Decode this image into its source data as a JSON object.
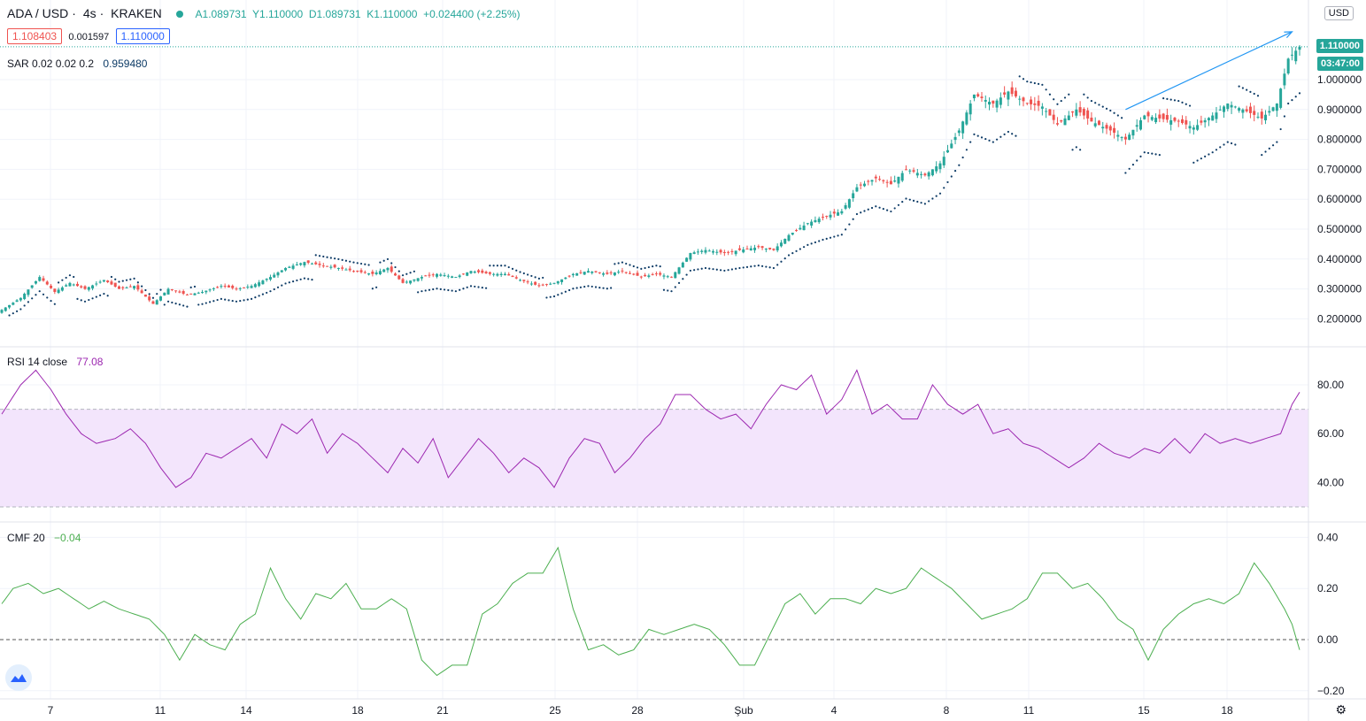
{
  "header": {
    "symbol": "ADA / USD",
    "interval": "4s",
    "exchange": "KRAKEN",
    "ohlc": "A1.089731  Y1.110000  D1.089731  K1.110000  +0.024400 (+2.25%)",
    "bid": "1.108403",
    "spread": "0.001597",
    "ask": "1.110000",
    "currency": "USD"
  },
  "indicators": {
    "sar_label": "SAR 0.02 0.02 0.2",
    "sar_value": "0.959480",
    "rsi_label": "RSI 14 close",
    "rsi_value": "77.08",
    "cmf_label": "CMF 20",
    "cmf_value": "−0.04"
  },
  "price_axis": {
    "last_price": "1.110000",
    "countdown": "03:47:00",
    "ticks": [
      "1.000000",
      "0.900000",
      "0.800000",
      "0.700000",
      "0.600000",
      "0.500000",
      "0.400000",
      "0.300000",
      "0.200000"
    ]
  },
  "rsi_axis": {
    "ticks": [
      "80.00",
      "60.00",
      "40.00"
    ]
  },
  "cmf_axis": {
    "ticks": [
      "0.40",
      "0.20",
      "0.00",
      "−0.20"
    ]
  },
  "time_axis": {
    "labels": [
      "7",
      "11",
      "14",
      "18",
      "21",
      "25",
      "28",
      "Şub",
      "4",
      "8",
      "11",
      "15",
      "18"
    ]
  },
  "colors": {
    "up": "#26a69a",
    "down": "#ef5350",
    "sar": "#0d3b66",
    "rsi": "#9c27b0",
    "rsi_band": "#f3e5fc",
    "cmf": "#4caf50",
    "arrow": "#2196f3"
  },
  "chart_data": [
    {
      "type": "candlestick",
      "title": "ADA / USD · 4s · KRAKEN",
      "ylim": [
        0.15,
        1.16
      ],
      "close_anchors": [
        [
          0,
          0.23
        ],
        [
          5,
          0.27
        ],
        [
          10,
          0.34
        ],
        [
          14,
          0.29
        ],
        [
          18,
          0.32
        ],
        [
          22,
          0.3
        ],
        [
          27,
          0.33
        ],
        [
          31,
          0.3
        ],
        [
          35,
          0.31
        ],
        [
          40,
          0.25
        ],
        [
          44,
          0.3
        ],
        [
          49,
          0.28
        ],
        [
          53,
          0.29
        ],
        [
          58,
          0.31
        ],
        [
          62,
          0.3
        ],
        [
          66,
          0.31
        ],
        [
          71,
          0.34
        ],
        [
          75,
          0.37
        ],
        [
          80,
          0.39
        ],
        [
          84,
          0.38
        ],
        [
          89,
          0.37
        ],
        [
          93,
          0.36
        ],
        [
          98,
          0.35
        ],
        [
          102,
          0.37
        ],
        [
          106,
          0.32
        ],
        [
          111,
          0.34
        ],
        [
          115,
          0.35
        ],
        [
          120,
          0.34
        ],
        [
          124,
          0.36
        ],
        [
          129,
          0.35
        ],
        [
          133,
          0.35
        ],
        [
          137,
          0.33
        ],
        [
          142,
          0.31
        ],
        [
          146,
          0.32
        ],
        [
          151,
          0.35
        ],
        [
          155,
          0.36
        ],
        [
          160,
          0.35
        ],
        [
          164,
          0.36
        ],
        [
          169,
          0.34
        ],
        [
          173,
          0.35
        ],
        [
          177,
          0.34
        ],
        [
          182,
          0.42
        ],
        [
          186,
          0.43
        ],
        [
          191,
          0.42
        ],
        [
          195,
          0.43
        ],
        [
          200,
          0.44
        ],
        [
          204,
          0.43
        ],
        [
          208,
          0.48
        ],
        [
          213,
          0.52
        ],
        [
          217,
          0.54
        ],
        [
          222,
          0.56
        ],
        [
          226,
          0.64
        ],
        [
          231,
          0.67
        ],
        [
          235,
          0.65
        ],
        [
          239,
          0.7
        ],
        [
          244,
          0.68
        ],
        [
          248,
          0.72
        ],
        [
          253,
          0.83
        ],
        [
          257,
          0.95
        ],
        [
          262,
          0.92
        ],
        [
          266,
          0.96
        ],
        [
          271,
          0.92
        ],
        [
          275,
          0.91
        ],
        [
          279,
          0.85
        ],
        [
          284,
          0.9
        ],
        [
          288,
          0.86
        ],
        [
          293,
          0.83
        ],
        [
          297,
          0.8
        ],
        [
          302,
          0.88
        ],
        [
          306,
          0.87
        ],
        [
          311,
          0.86
        ],
        [
          315,
          0.84
        ],
        [
          320,
          0.88
        ],
        [
          324,
          0.92
        ],
        [
          328,
          0.9
        ],
        [
          333,
          0.87
        ],
        [
          337,
          0.92
        ],
        [
          340,
          1.07
        ],
        [
          343,
          1.11
        ]
      ]
    },
    {
      "type": "line",
      "title": "RSI 14 close",
      "ylim": [
        28,
        94
      ],
      "bands": [
        70,
        30
      ],
      "points": [
        [
          0,
          68
        ],
        [
          5,
          80
        ],
        [
          9,
          86
        ],
        [
          13,
          78
        ],
        [
          17,
          68
        ],
        [
          21,
          60
        ],
        [
          25,
          56
        ],
        [
          30,
          58
        ],
        [
          34,
          62
        ],
        [
          38,
          56
        ],
        [
          42,
          46
        ],
        [
          46,
          38
        ],
        [
          50,
          42
        ],
        [
          54,
          52
        ],
        [
          58,
          50
        ],
        [
          62,
          54
        ],
        [
          66,
          58
        ],
        [
          70,
          50
        ],
        [
          74,
          64
        ],
        [
          78,
          60
        ],
        [
          82,
          66
        ],
        [
          86,
          52
        ],
        [
          90,
          60
        ],
        [
          94,
          56
        ],
        [
          98,
          50
        ],
        [
          102,
          44
        ],
        [
          106,
          54
        ],
        [
          110,
          48
        ],
        [
          114,
          58
        ],
        [
          118,
          42
        ],
        [
          122,
          50
        ],
        [
          126,
          58
        ],
        [
          130,
          52
        ],
        [
          134,
          44
        ],
        [
          138,
          50
        ],
        [
          142,
          46
        ],
        [
          146,
          38
        ],
        [
          150,
          50
        ],
        [
          154,
          58
        ],
        [
          158,
          56
        ],
        [
          162,
          44
        ],
        [
          166,
          50
        ],
        [
          170,
          58
        ],
        [
          174,
          64
        ],
        [
          178,
          76
        ],
        [
          182,
          76
        ],
        [
          186,
          70
        ],
        [
          190,
          66
        ],
        [
          194,
          68
        ],
        [
          198,
          62
        ],
        [
          202,
          72
        ],
        [
          206,
          80
        ],
        [
          210,
          78
        ],
        [
          214,
          84
        ],
        [
          218,
          68
        ],
        [
          222,
          74
        ],
        [
          226,
          86
        ],
        [
          230,
          68
        ],
        [
          234,
          72
        ],
        [
          238,
          66
        ],
        [
          242,
          66
        ],
        [
          246,
          80
        ],
        [
          250,
          72
        ],
        [
          254,
          68
        ],
        [
          258,
          72
        ],
        [
          262,
          60
        ],
        [
          266,
          62
        ],
        [
          270,
          56
        ],
        [
          274,
          54
        ],
        [
          278,
          50
        ],
        [
          282,
          46
        ],
        [
          286,
          50
        ],
        [
          290,
          56
        ],
        [
          294,
          52
        ],
        [
          298,
          50
        ],
        [
          302,
          54
        ],
        [
          306,
          52
        ],
        [
          310,
          58
        ],
        [
          314,
          52
        ],
        [
          318,
          60
        ],
        [
          322,
          56
        ],
        [
          326,
          58
        ],
        [
          330,
          56
        ],
        [
          334,
          58
        ],
        [
          338,
          60
        ],
        [
          341,
          72
        ],
        [
          343,
          77
        ]
      ]
    },
    {
      "type": "line",
      "title": "CMF 20",
      "ylim": [
        -0.22,
        0.44
      ],
      "zero_line": 0,
      "points": [
        [
          0,
          0.14
        ],
        [
          3,
          0.2
        ],
        [
          7,
          0.22
        ],
        [
          11,
          0.18
        ],
        [
          15,
          0.2
        ],
        [
          19,
          0.16
        ],
        [
          23,
          0.12
        ],
        [
          27,
          0.15
        ],
        [
          31,
          0.12
        ],
        [
          35,
          0.1
        ],
        [
          39,
          0.08
        ],
        [
          43,
          0.02
        ],
        [
          47,
          -0.08
        ],
        [
          51,
          0.02
        ],
        [
          55,
          -0.02
        ],
        [
          59,
          -0.04
        ],
        [
          63,
          0.06
        ],
        [
          67,
          0.1
        ],
        [
          71,
          0.28
        ],
        [
          75,
          0.16
        ],
        [
          79,
          0.08
        ],
        [
          83,
          0.18
        ],
        [
          87,
          0.16
        ],
        [
          91,
          0.22
        ],
        [
          95,
          0.12
        ],
        [
          99,
          0.12
        ],
        [
          103,
          0.16
        ],
        [
          107,
          0.12
        ],
        [
          111,
          -0.08
        ],
        [
          115,
          -0.14
        ],
        [
          119,
          -0.1
        ],
        [
          123,
          -0.1
        ],
        [
          127,
          0.1
        ],
        [
          131,
          0.14
        ],
        [
          135,
          0.22
        ],
        [
          139,
          0.26
        ],
        [
          143,
          0.26
        ],
        [
          147,
          0.36
        ],
        [
          151,
          0.12
        ],
        [
          155,
          -0.04
        ],
        [
          159,
          -0.02
        ],
        [
          163,
          -0.06
        ],
        [
          167,
          -0.04
        ],
        [
          171,
          0.04
        ],
        [
          175,
          0.02
        ],
        [
          179,
          0.04
        ],
        [
          183,
          0.06
        ],
        [
          187,
          0.04
        ],
        [
          191,
          -0.02
        ],
        [
          195,
          -0.1
        ],
        [
          199,
          -0.1
        ],
        [
          203,
          0.02
        ],
        [
          207,
          0.14
        ],
        [
          211,
          0.18
        ],
        [
          215,
          0.1
        ],
        [
          219,
          0.16
        ],
        [
          223,
          0.16
        ],
        [
          227,
          0.14
        ],
        [
          231,
          0.2
        ],
        [
          235,
          0.18
        ],
        [
          239,
          0.2
        ],
        [
          243,
          0.28
        ],
        [
          247,
          0.24
        ],
        [
          251,
          0.2
        ],
        [
          255,
          0.14
        ],
        [
          259,
          0.08
        ],
        [
          263,
          0.1
        ],
        [
          267,
          0.12
        ],
        [
          271,
          0.16
        ],
        [
          275,
          0.26
        ],
        [
          279,
          0.26
        ],
        [
          283,
          0.2
        ],
        [
          287,
          0.22
        ],
        [
          291,
          0.16
        ],
        [
          295,
          0.08
        ],
        [
          299,
          0.04
        ],
        [
          303,
          -0.08
        ],
        [
          307,
          0.04
        ],
        [
          311,
          0.1
        ],
        [
          315,
          0.14
        ],
        [
          319,
          0.16
        ],
        [
          323,
          0.14
        ],
        [
          327,
          0.18
        ],
        [
          331,
          0.3
        ],
        [
          335,
          0.22
        ],
        [
          339,
          0.12
        ],
        [
          341,
          0.06
        ],
        [
          343,
          -0.04
        ]
      ]
    }
  ]
}
